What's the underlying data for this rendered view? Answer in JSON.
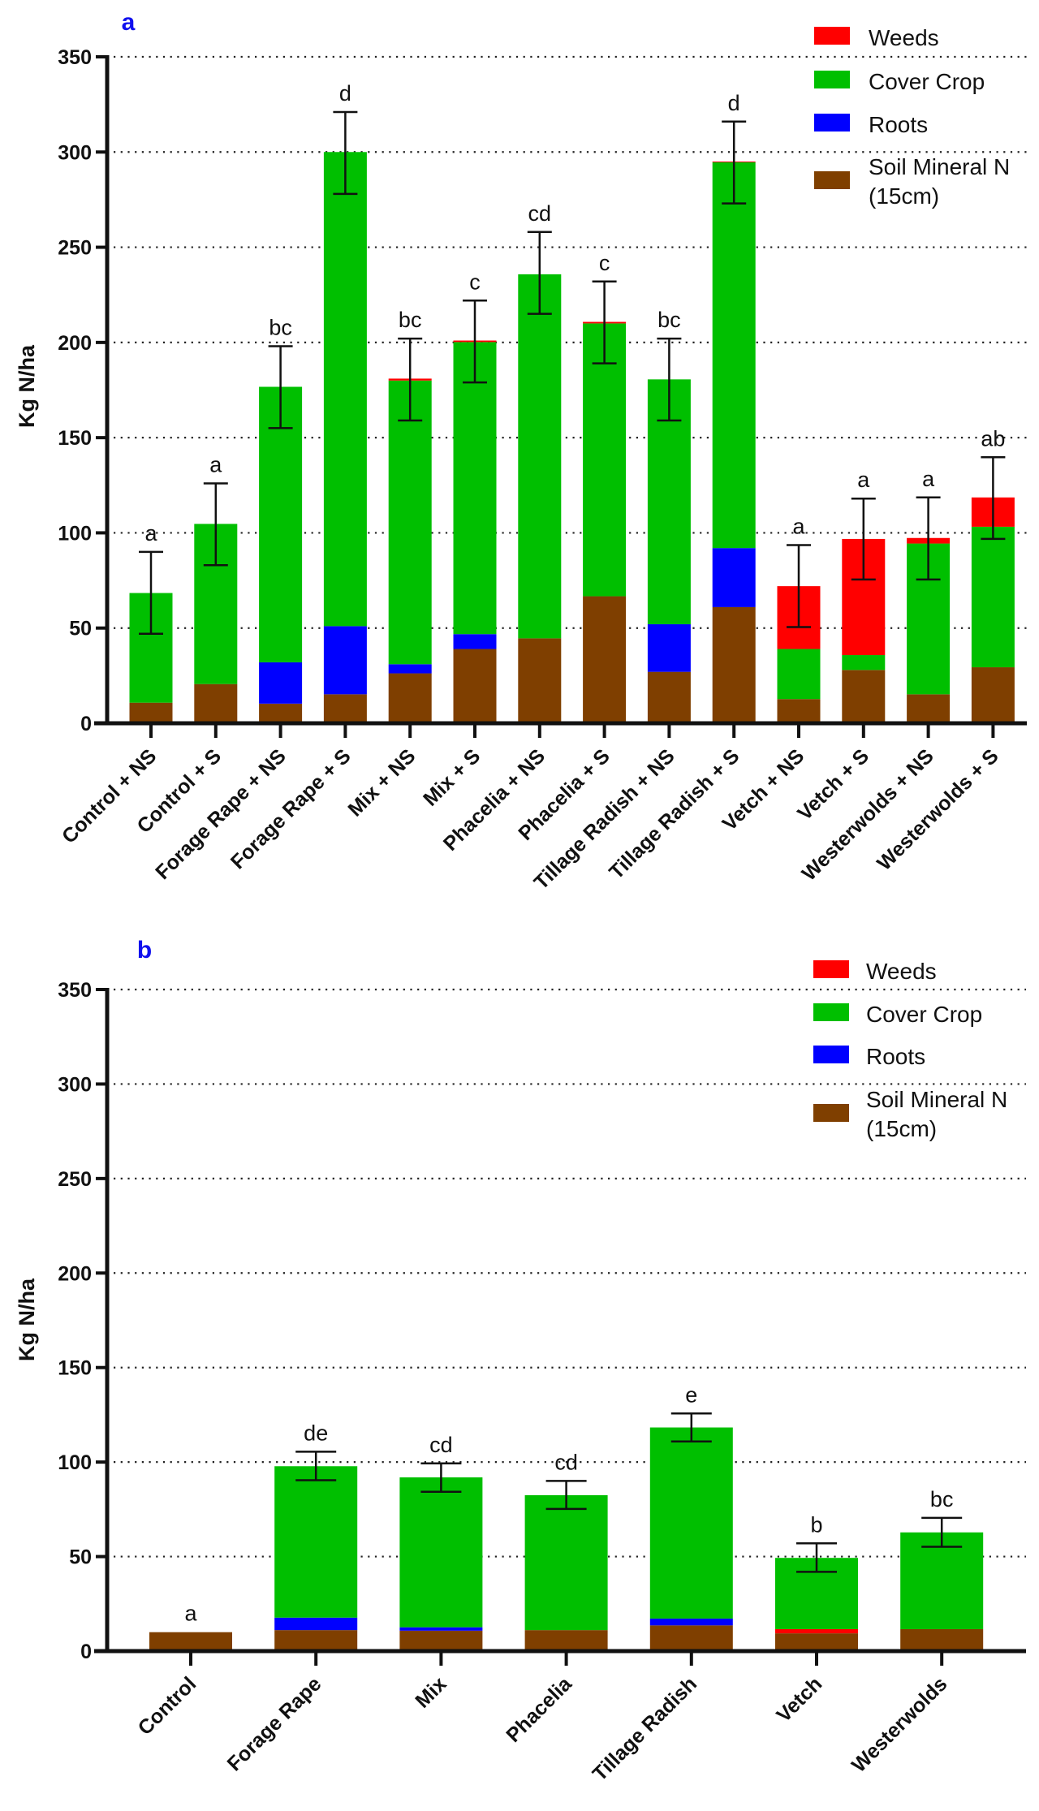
{
  "chart_data": [
    {
      "type": "bar",
      "stacked": true,
      "panel_label": "a",
      "ylabel": "Kg  N/ha",
      "ylim": [
        0,
        350
      ],
      "yticks": [
        0,
        50,
        100,
        150,
        200,
        250,
        300,
        350
      ],
      "grid": "dotted horizontal",
      "legend_position": "top-right",
      "legend": [
        {
          "label": "Weeds",
          "color": "#ff0000"
        },
        {
          "label": "Cover Crop",
          "color": "#00bf00"
        },
        {
          "label": "Roots",
          "color": "#0000ff"
        },
        {
          "label": "Soil Mineral N",
          "label2": "(15cm)",
          "color": "#7f3f00"
        }
      ],
      "categories": [
        "Control + NS",
        "Control + S",
        "Forage Rape + NS",
        "Forage Rape + S",
        "Mix +  NS",
        "Mix + S",
        "Phacelia + NS",
        "Phacelia + S",
        "Tillage Radish + NS",
        "Tillage Radish + S",
        "Vetch + NS",
        "Vetch + S",
        "Westerwolds + NS",
        "Westerwolds + S"
      ],
      "series": [
        {
          "name": "Soil Mineral N (15cm)",
          "color": "#7f3f00",
          "values": [
            10.8,
            20.6,
            10.3,
            15.2,
            26.2,
            39,
            44.6,
            66.7,
            27,
            61,
            12.7,
            28,
            15.2,
            29.4
          ]
        },
        {
          "name": "Roots",
          "color": "#0000ff",
          "values": [
            0,
            0,
            21.7,
            35.8,
            4.8,
            7.8,
            0,
            0,
            25,
            31,
            0,
            0,
            0,
            0
          ]
        },
        {
          "name": "Cover Crop",
          "color": "#00bf00",
          "values": [
            57.6,
            84.1,
            144.7,
            249,
            149,
            153.4,
            191.2,
            143.3,
            128.6,
            202.6,
            26.3,
            7.8,
            79.2,
            73.8
          ]
        },
        {
          "name": "Weeds",
          "color": "#ff0000",
          "values": [
            0,
            0,
            0,
            0,
            1,
            0.8,
            0,
            0.8,
            0,
            0.4,
            33,
            61,
            2.9,
            15.4
          ]
        }
      ],
      "error_bars": [
        [
          47,
          90
        ],
        [
          83,
          126
        ],
        [
          155,
          198
        ],
        [
          278,
          321
        ],
        [
          159,
          202
        ],
        [
          179,
          222
        ],
        [
          215,
          258
        ],
        [
          189,
          232
        ],
        [
          159,
          202
        ],
        [
          273,
          316
        ],
        [
          50.5,
          93.6
        ],
        [
          75.5,
          118
        ],
        [
          75.5,
          118.6
        ],
        [
          96.8,
          139.7
        ]
      ],
      "significance_letters": [
        "a",
        "a",
        "bc",
        "d",
        "bc",
        "c",
        "cd",
        "c",
        "bc",
        "d",
        "a",
        "a",
        "a",
        "ab"
      ]
    },
    {
      "type": "bar",
      "stacked": true,
      "panel_label": "b",
      "ylabel": "Kg N/ha",
      "ylim": [
        0,
        350
      ],
      "yticks": [
        0,
        50,
        100,
        150,
        200,
        250,
        300,
        350
      ],
      "grid": "dotted horizontal",
      "legend_position": "top-right",
      "legend": [
        {
          "label": "Weeds",
          "color": "#ff0000"
        },
        {
          "label": "Cover Crop",
          "color": "#00bf00"
        },
        {
          "label": "Roots",
          "color": "#0000ff"
        },
        {
          "label": "Soil Mineral N",
          "label2": "(15cm)",
          "color": "#7f3f00"
        }
      ],
      "categories": [
        "Control",
        "Forage Rape",
        "Mix",
        "Phacelia",
        "Tillage Radish",
        "Vetch",
        "Westerwolds"
      ],
      "series": [
        {
          "name": "Soil Mineral N (15cm)",
          "color": "#7f3f00",
          "values": [
            10,
            11.1,
            10.8,
            11.1,
            13.6,
            9.4,
            11.6
          ]
        },
        {
          "name": "Roots",
          "color": "#0000ff",
          "values": [
            0,
            6.6,
            1.8,
            0,
            3.6,
            0,
            0
          ]
        },
        {
          "name": "Weeds",
          "color": "#ff0000",
          "values": [
            0,
            0,
            0,
            0,
            0,
            2.2,
            0
          ]
        },
        {
          "name": "Cover Crop",
          "color": "#00bf00",
          "values": [
            0,
            80.1,
            79.3,
            71.4,
            101.1,
            37.7,
            51.2
          ]
        }
      ],
      "error_bars": [
        null,
        [
          90.4,
          105.5
        ],
        [
          84.3,
          99.3
        ],
        [
          75.2,
          90
        ],
        [
          110.9,
          125.7
        ],
        [
          41.9,
          57
        ],
        [
          55.2,
          70.5
        ]
      ],
      "significance_letters": [
        "a",
        "de",
        "cd",
        "cd",
        "e",
        "b",
        "bc"
      ]
    }
  ]
}
